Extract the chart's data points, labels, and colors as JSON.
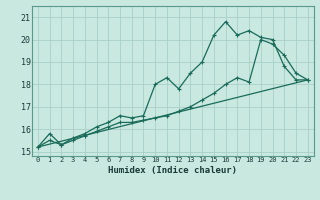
{
  "xlabel": "Humidex (Indice chaleur)",
  "x_ticks": [
    0,
    1,
    2,
    3,
    4,
    5,
    6,
    7,
    8,
    9,
    10,
    11,
    12,
    13,
    14,
    15,
    16,
    17,
    18,
    19,
    20,
    21,
    22,
    23
  ],
  "xlim": [
    -0.5,
    23.5
  ],
  "ylim": [
    14.8,
    21.5
  ],
  "y_ticks": [
    15,
    16,
    17,
    18,
    19,
    20,
    21
  ],
  "bg_color": "#c8e8e0",
  "grid_color": "#a8d0c8",
  "line_color": "#1a6b5a",
  "line1_x": [
    0,
    1,
    2,
    3,
    4,
    5,
    6,
    7,
    8,
    9,
    10,
    11,
    12,
    13,
    14,
    15,
    16,
    17,
    18,
    19,
    20,
    21,
    22,
    23
  ],
  "line1_y": [
    15.2,
    15.8,
    15.3,
    15.6,
    15.8,
    16.1,
    16.3,
    16.6,
    16.5,
    16.6,
    18.0,
    18.3,
    17.8,
    18.5,
    19.0,
    20.2,
    20.8,
    20.2,
    20.4,
    20.1,
    20.0,
    18.8,
    18.2,
    18.2
  ],
  "line2_x": [
    0,
    1,
    2,
    3,
    4,
    5,
    6,
    7,
    8,
    9,
    10,
    11,
    12,
    13,
    14,
    15,
    16,
    17,
    18,
    19,
    20,
    21,
    22,
    23
  ],
  "line2_y": [
    15.2,
    15.5,
    15.3,
    15.5,
    15.7,
    15.9,
    16.1,
    16.3,
    16.3,
    16.4,
    16.5,
    16.6,
    16.8,
    17.0,
    17.3,
    17.6,
    18.0,
    18.3,
    18.1,
    20.0,
    19.8,
    19.3,
    18.5,
    18.2
  ],
  "line3_x": [
    0,
    23
  ],
  "line3_y": [
    15.2,
    18.2
  ]
}
